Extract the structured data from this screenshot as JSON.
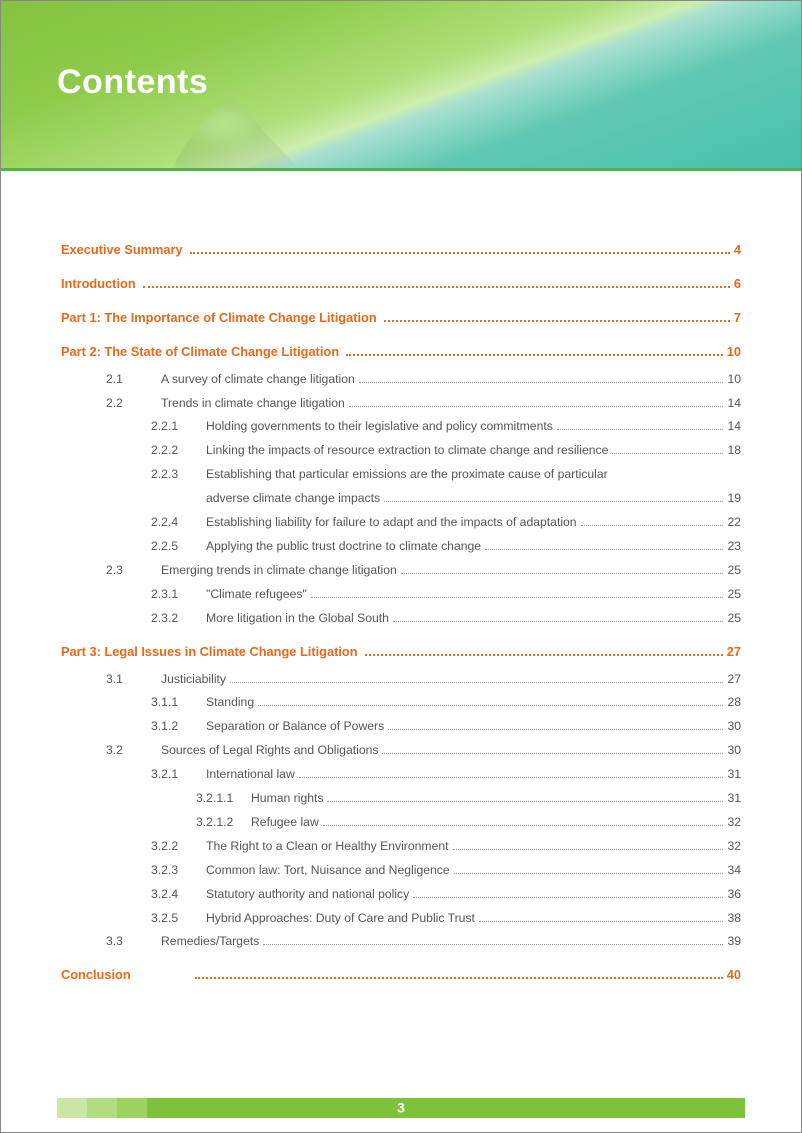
{
  "header": {
    "title": "Contents"
  },
  "footer": {
    "page_number": "3"
  },
  "colors": {
    "accent_orange": "#e8681c",
    "header_green": "#7cc23a",
    "body_text": "#555555",
    "dots": "#999999"
  },
  "toc": [
    {
      "level": 0,
      "num": "",
      "title": "Executive Summary",
      "page": "4"
    },
    {
      "level": 0,
      "num": "",
      "title": "Introduction",
      "page": "6"
    },
    {
      "level": 0,
      "num": "",
      "title": "Part 1: The Importance of Climate Change Litigation",
      "page": "7"
    },
    {
      "level": 0,
      "num": "",
      "title": "Part 2: The State of Climate Change Litigation",
      "page": "10"
    },
    {
      "level": 2,
      "num": "2.1",
      "title": "A survey of climate change litigation",
      "page": "10"
    },
    {
      "level": 2,
      "num": "2.2",
      "title": "Trends in climate change litigation",
      "page": "14"
    },
    {
      "level": 3,
      "num": "2.2.1",
      "title": "Holding governments to their legislative and policy commitments",
      "page": "14"
    },
    {
      "level": 3,
      "num": "2.2.2",
      "title": "Linking the impacts of resource extraction to climate change and resilience",
      "page": "18"
    },
    {
      "level": 3,
      "num": "2.2.3",
      "title": "Establishing that particular emissions are the proximate cause of particular",
      "page": "",
      "nopage": true
    },
    {
      "level": 3,
      "num": "",
      "title": "adverse climate change impacts",
      "page": "19",
      "continuation": true
    },
    {
      "level": 3,
      "num": "2.2.4",
      "title": "Establishing liability for failure to adapt and the impacts of adaptation",
      "page": "22"
    },
    {
      "level": 3,
      "num": "2.2.5",
      "title": "Applying the public trust doctrine to climate change",
      "page": "23"
    },
    {
      "level": 2,
      "num": "2.3",
      "title": "Emerging trends in climate change litigation",
      "page": "25"
    },
    {
      "level": 3,
      "num": "2.3.1",
      "title": "\"Climate refugees\"",
      "page": "25"
    },
    {
      "level": 3,
      "num": "2.3.2",
      "title": "More litigation in the Global South",
      "page": "25"
    },
    {
      "level": 0,
      "num": "",
      "title": "Part 3: Legal Issues in Climate Change Litigation",
      "page": "27"
    },
    {
      "level": 2,
      "num": "3.1",
      "title": "Justiciability",
      "page": "27"
    },
    {
      "level": 3,
      "num": "3.1.1",
      "title": "Standing",
      "page": "28"
    },
    {
      "level": 3,
      "num": "3.1.2",
      "title": "Separation or Balance of Powers",
      "page": "30"
    },
    {
      "level": 2,
      "num": "3.2",
      "title": "Sources of Legal Rights and Obligations",
      "page": "30"
    },
    {
      "level": 3,
      "num": "3.2.1",
      "title": "International law",
      "page": "31"
    },
    {
      "level": 4,
      "num": "3.2.1.1",
      "title": "Human rights",
      "page": "31"
    },
    {
      "level": 4,
      "num": "3.2.1.2",
      "title": "Refugee law",
      "page": "32"
    },
    {
      "level": 3,
      "num": "3.2.2",
      "title": "The Right to a Clean or Healthy Environment",
      "page": "32"
    },
    {
      "level": 3,
      "num": "3.2.3",
      "title": "Common law: Tort, Nuisance and Negligence",
      "page": "34"
    },
    {
      "level": 3,
      "num": "3.2.4",
      "title": "Statutory authority and national policy",
      "page": "36"
    },
    {
      "level": 3,
      "num": "3.2.5",
      "title": "Hybrid Approaches: Duty of Care and Public Trust",
      "page": "38"
    },
    {
      "level": 2,
      "num": "3.3",
      "title": "Remedies/Targets",
      "page": "39"
    },
    {
      "level": 0,
      "num": "",
      "title": "Conclusion",
      "page": "40",
      "conclusion": true
    }
  ]
}
